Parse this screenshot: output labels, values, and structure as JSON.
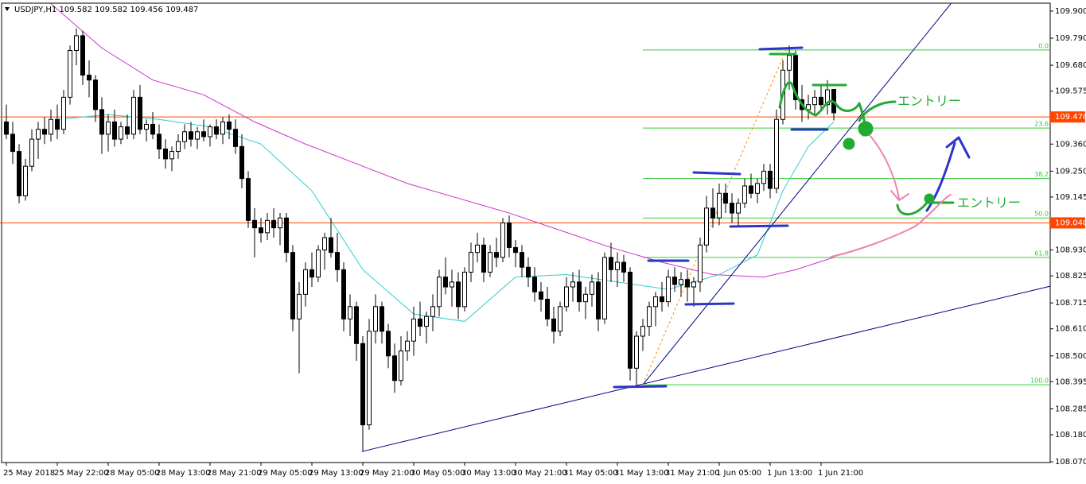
{
  "chart_data": {
    "type": "candlestick",
    "header": "USDJPY,H1  109.582 109.582 109.456 109.487",
    "categories": [
      "25 May 2018",
      null,
      null,
      null,
      null,
      null,
      null,
      null,
      "25 May 22:00",
      null,
      null,
      null,
      null,
      null,
      null,
      null,
      "28 May 05:00",
      null,
      null,
      null,
      null,
      null,
      null,
      null,
      "28 May 13:00",
      null,
      null,
      null,
      null,
      null,
      null,
      null,
      "28 May 21:00",
      null,
      null,
      null,
      null,
      null,
      null,
      null,
      "29 May 05:00",
      null,
      null,
      null,
      null,
      null,
      null,
      null,
      "29 May 13:00",
      null,
      null,
      null,
      null,
      null,
      null,
      null,
      "29 May 21:00",
      null,
      null,
      null,
      null,
      null,
      null,
      null,
      "30 May 05:00",
      null,
      null,
      null,
      null,
      null,
      null,
      null,
      "30 May 13:00",
      null,
      null,
      null,
      null,
      null,
      null,
      null,
      "30 May 21:00",
      null,
      null,
      null,
      null,
      null,
      null,
      null,
      "31 May 05:00",
      null,
      null,
      null,
      null,
      null,
      null,
      null,
      "31 May 13:00",
      null,
      null,
      null,
      null,
      null,
      null,
      null,
      "31 May 21:00",
      null,
      null,
      null,
      null,
      null,
      null,
      null,
      "1 Jun 05:00",
      null,
      null,
      null,
      null,
      null,
      null,
      null,
      "1 Jun 13:00",
      null,
      null,
      null,
      null,
      null,
      null,
      null,
      "1 Jun 21:00",
      null,
      null
    ],
    "candles": [
      [
        109.45,
        109.52,
        109.38,
        109.4
      ],
      [
        109.4,
        109.45,
        109.28,
        109.33
      ],
      [
        109.33,
        109.36,
        109.12,
        109.15
      ],
      [
        109.15,
        109.3,
        109.13,
        109.27
      ],
      [
        109.27,
        109.42,
        109.25,
        109.38
      ],
      [
        109.38,
        109.45,
        109.3,
        109.42
      ],
      [
        109.42,
        109.47,
        109.36,
        109.4
      ],
      [
        109.4,
        109.5,
        109.37,
        109.46
      ],
      [
        109.46,
        109.52,
        109.38,
        109.42
      ],
      [
        109.42,
        109.58,
        109.4,
        109.55
      ],
      [
        109.55,
        109.76,
        109.52,
        109.74
      ],
      [
        109.74,
        109.83,
        109.68,
        109.8
      ],
      [
        109.8,
        109.82,
        109.6,
        109.64
      ],
      [
        109.64,
        109.7,
        109.55,
        109.62
      ],
      [
        109.62,
        109.64,
        109.45,
        109.5
      ],
      [
        109.5,
        109.55,
        109.32,
        109.4
      ],
      [
        109.4,
        109.48,
        109.33,
        109.45
      ],
      [
        109.45,
        109.5,
        109.35,
        109.38
      ],
      [
        109.38,
        109.45,
        109.36,
        109.43
      ],
      [
        109.43,
        109.48,
        109.38,
        109.4
      ],
      [
        109.4,
        109.58,
        109.38,
        109.55
      ],
      [
        109.55,
        109.6,
        109.4,
        109.42
      ],
      [
        109.42,
        109.46,
        109.37,
        109.44
      ],
      [
        109.44,
        109.49,
        109.38,
        109.4
      ],
      [
        109.4,
        109.44,
        109.3,
        109.34
      ],
      [
        109.34,
        109.38,
        109.26,
        109.3
      ],
      [
        109.3,
        109.35,
        109.25,
        109.33
      ],
      [
        109.33,
        109.4,
        109.3,
        109.37
      ],
      [
        109.37,
        109.44,
        109.34,
        109.41
      ],
      [
        109.41,
        109.45,
        109.35,
        109.38
      ],
      [
        109.38,
        109.43,
        109.34,
        109.41
      ],
      [
        109.41,
        109.46,
        109.37,
        109.39
      ],
      [
        109.39,
        109.44,
        109.35,
        109.43
      ],
      [
        109.43,
        109.46,
        109.38,
        109.4
      ],
      [
        109.4,
        109.47,
        109.36,
        109.45
      ],
      [
        109.45,
        109.48,
        109.38,
        109.42
      ],
      [
        109.42,
        109.46,
        109.32,
        109.35
      ],
      [
        109.35,
        109.4,
        109.18,
        109.22
      ],
      [
        109.22,
        109.25,
        109.02,
        109.05
      ],
      [
        109.05,
        109.1,
        108.9,
        109.02
      ],
      [
        109.02,
        109.06,
        108.96,
        109.0
      ],
      [
        109.0,
        109.08,
        108.97,
        109.05
      ],
      [
        109.05,
        109.1,
        108.98,
        109.02
      ],
      [
        109.02,
        109.08,
        108.95,
        109.06
      ],
      [
        109.06,
        109.08,
        108.88,
        108.92
      ],
      [
        108.92,
        108.95,
        108.6,
        108.65
      ],
      [
        108.65,
        108.8,
        108.43,
        108.75
      ],
      [
        108.75,
        108.88,
        108.7,
        108.85
      ],
      [
        108.85,
        108.92,
        108.78,
        108.82
      ],
      [
        108.82,
        108.95,
        108.8,
        108.93
      ],
      [
        108.93,
        109.0,
        108.85,
        108.98
      ],
      [
        108.98,
        109.06,
        108.9,
        108.92
      ],
      [
        108.92,
        109.0,
        108.8,
        108.85
      ],
      [
        108.85,
        108.88,
        108.6,
        108.65
      ],
      [
        108.65,
        108.75,
        108.58,
        108.7
      ],
      [
        108.7,
        108.72,
        108.48,
        108.55
      ],
      [
        108.55,
        108.58,
        108.11,
        108.22
      ],
      [
        108.22,
        108.65,
        108.2,
        108.6
      ],
      [
        108.6,
        108.75,
        108.55,
        108.7
      ],
      [
        108.7,
        108.72,
        108.55,
        108.6
      ],
      [
        108.6,
        108.63,
        108.45,
        108.5
      ],
      [
        108.5,
        108.55,
        108.35,
        108.4
      ],
      [
        108.4,
        108.58,
        108.38,
        108.52
      ],
      [
        108.52,
        108.6,
        108.48,
        108.56
      ],
      [
        108.56,
        108.7,
        108.5,
        108.65
      ],
      [
        108.65,
        108.72,
        108.58,
        108.62
      ],
      [
        108.62,
        108.68,
        108.55,
        108.66
      ],
      [
        108.66,
        108.75,
        108.6,
        108.7
      ],
      [
        108.7,
        108.85,
        108.66,
        108.82
      ],
      [
        108.82,
        108.9,
        108.75,
        108.78
      ],
      [
        108.78,
        108.85,
        108.7,
        108.8
      ],
      [
        108.8,
        108.84,
        108.65,
        108.7
      ],
      [
        108.7,
        108.86,
        108.68,
        108.84
      ],
      [
        108.84,
        108.96,
        108.8,
        108.92
      ],
      [
        108.92,
        109.0,
        108.88,
        108.95
      ],
      [
        108.95,
        108.98,
        108.8,
        108.84
      ],
      [
        108.84,
        108.95,
        108.82,
        108.92
      ],
      [
        108.92,
        108.98,
        108.86,
        108.9
      ],
      [
        108.9,
        109.06,
        108.88,
        109.04
      ],
      [
        109.04,
        109.07,
        108.9,
        108.94
      ],
      [
        108.94,
        108.97,
        108.86,
        108.92
      ],
      [
        108.92,
        108.95,
        108.82,
        108.86
      ],
      [
        108.86,
        108.9,
        108.78,
        108.82
      ],
      [
        108.82,
        108.86,
        108.72,
        108.76
      ],
      [
        108.76,
        108.8,
        108.68,
        108.73
      ],
      [
        108.73,
        108.78,
        108.62,
        108.65
      ],
      [
        108.65,
        108.7,
        108.55,
        108.6
      ],
      [
        108.6,
        108.72,
        108.58,
        108.7
      ],
      [
        108.7,
        108.82,
        108.68,
        108.78
      ],
      [
        108.78,
        108.84,
        108.72,
        108.8
      ],
      [
        108.8,
        108.85,
        108.68,
        108.72
      ],
      [
        108.72,
        108.78,
        108.65,
        108.75
      ],
      [
        108.75,
        108.83,
        108.7,
        108.8
      ],
      [
        108.8,
        108.84,
        108.6,
        108.65
      ],
      [
        108.65,
        108.92,
        108.63,
        108.9
      ],
      [
        108.9,
        108.96,
        108.8,
        108.85
      ],
      [
        108.85,
        108.92,
        108.78,
        108.88
      ],
      [
        108.88,
        108.91,
        108.8,
        108.84
      ],
      [
        108.84,
        108.86,
        108.4,
        108.45
      ],
      [
        108.45,
        108.6,
        108.37,
        108.58
      ],
      [
        108.58,
        108.65,
        108.52,
        108.62
      ],
      [
        108.62,
        108.72,
        108.58,
        108.7
      ],
      [
        108.7,
        108.76,
        108.62,
        108.74
      ],
      [
        108.74,
        108.8,
        108.68,
        108.72
      ],
      [
        108.72,
        108.85,
        108.7,
        108.82
      ],
      [
        108.82,
        108.86,
        108.76,
        108.79
      ],
      [
        108.79,
        108.84,
        108.74,
        108.81
      ],
      [
        108.81,
        108.85,
        108.72,
        108.78
      ],
      [
        108.78,
        108.82,
        108.7,
        108.8
      ],
      [
        108.8,
        108.98,
        108.76,
        108.95
      ],
      [
        108.95,
        109.15,
        108.92,
        109.1
      ],
      [
        109.1,
        109.18,
        109.02,
        109.06
      ],
      [
        109.06,
        109.2,
        109.03,
        109.16
      ],
      [
        109.16,
        109.2,
        109.08,
        109.12
      ],
      [
        109.12,
        109.16,
        109.04,
        109.08
      ],
      [
        109.08,
        109.14,
        109.03,
        109.12
      ],
      [
        109.12,
        109.22,
        109.1,
        109.19
      ],
      [
        109.19,
        109.24,
        109.14,
        109.16
      ],
      [
        109.16,
        109.22,
        109.12,
        109.2
      ],
      [
        109.2,
        109.28,
        109.17,
        109.25
      ],
      [
        109.25,
        109.28,
        109.14,
        109.18
      ],
      [
        109.18,
        109.5,
        109.16,
        109.46
      ],
      [
        109.46,
        109.7,
        109.44,
        109.66
      ],
      [
        109.66,
        109.76,
        109.58,
        109.72
      ],
      [
        109.72,
        109.74,
        109.5,
        109.54
      ],
      [
        109.54,
        109.6,
        109.45,
        109.5
      ],
      [
        109.5,
        109.56,
        109.46,
        109.52
      ],
      [
        109.52,
        109.58,
        109.48,
        109.55
      ],
      [
        109.55,
        109.6,
        109.5,
        109.52
      ],
      [
        109.52,
        109.62,
        109.48,
        109.58
      ],
      [
        109.582,
        109.582,
        109.456,
        109.487
      ]
    ],
    "xlim": [
      -1,
      164
    ],
    "ylim": [
      108.067,
      109.932
    ],
    "yticks": [
      {
        "value": 109.9,
        "label": "109.900"
      },
      {
        "value": 109.79,
        "label": "109.790"
      },
      {
        "value": 109.68,
        "label": "109.680"
      },
      {
        "value": 109.575,
        "label": "109.575"
      },
      {
        "value": 109.36,
        "label": "109.360"
      },
      {
        "value": 109.25,
        "label": "109.250"
      },
      {
        "value": 109.145,
        "label": "109.145"
      },
      {
        "value": 108.93,
        "label": "108.930"
      },
      {
        "value": 108.825,
        "label": "108.825"
      },
      {
        "value": 108.715,
        "label": "108.715"
      },
      {
        "value": 108.61,
        "label": "108.610"
      },
      {
        "value": 108.5,
        "label": "108.500"
      },
      {
        "value": 108.395,
        "label": "108.395"
      },
      {
        "value": 108.285,
        "label": "108.285"
      },
      {
        "value": 108.18,
        "label": "108.180"
      },
      {
        "value": 108.07,
        "label": "108.070"
      }
    ],
    "hlines": [
      {
        "value": 109.47,
        "label": "109.470",
        "color": "#ff4500"
      },
      {
        "value": 109.04,
        "label": "109.040",
        "color": "#ff4500"
      }
    ],
    "ma": [
      {
        "color": "#cc33cc",
        "x": [
          7,
          15,
          23,
          31,
          39,
          47,
          55,
          63,
          71,
          79,
          87,
          95,
          103,
          111,
          119,
          124,
          130
        ],
        "values": [
          109.93,
          109.75,
          109.62,
          109.56,
          109.45,
          109.36,
          109.28,
          109.2,
          109.14,
          109.08,
          109.01,
          108.94,
          108.88,
          108.83,
          108.82,
          108.85,
          108.9
        ]
      },
      {
        "color": "#33cccc",
        "x": [
          8,
          16,
          24,
          32,
          40,
          48,
          56,
          64,
          72,
          80,
          88,
          96,
          104,
          112,
          118,
          122,
          126,
          130
        ],
        "values": [
          109.46,
          109.48,
          109.46,
          109.43,
          109.36,
          109.17,
          108.85,
          108.67,
          108.64,
          108.82,
          108.83,
          108.8,
          108.77,
          108.83,
          108.91,
          109.17,
          109.35,
          109.45
        ]
      }
    ],
    "trendlines": [
      {
        "color": "#000080",
        "dash": false,
        "x": [
          55.9,
          164
        ],
        "y": [
          108.112,
          108.783
        ]
      },
      {
        "color": "#000080",
        "dash": false,
        "x": [
          100,
          148.4
        ],
        "y": [
          108.383,
          109.93
        ]
      },
      {
        "color": "#ff8c00",
        "dash": true,
        "x": [
          100,
          122.5
        ],
        "y": [
          108.383,
          109.742
        ]
      }
    ],
    "fib": {
      "color": "#33cc33",
      "start": 100,
      "levels": [
        {
          "label": "0.0",
          "price": 109.742
        },
        {
          "label": "23.6",
          "price": 109.425
        },
        {
          "label": "38.2",
          "price": 109.22
        },
        {
          "label": "50.0",
          "price": 109.06
        },
        {
          "label": "61.8",
          "price": 108.9
        },
        {
          "label": "100.0",
          "price": 108.383
        }
      ]
    }
  },
  "annotations": {
    "entry_1": "エントリー",
    "entry_2": "エントリー"
  }
}
